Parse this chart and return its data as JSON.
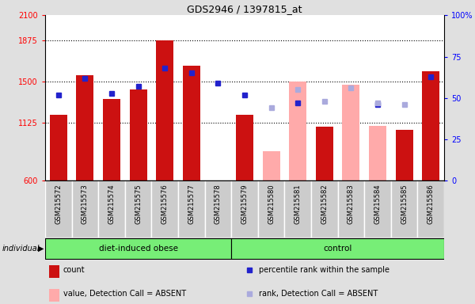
{
  "title": "GDS2946 / 1397815_at",
  "samples": [
    "GSM215572",
    "GSM215573",
    "GSM215574",
    "GSM215575",
    "GSM215576",
    "GSM215577",
    "GSM215578",
    "GSM215579",
    "GSM215580",
    "GSM215581",
    "GSM215582",
    "GSM215583",
    "GSM215584",
    "GSM215585",
    "GSM215586"
  ],
  "obese_group": [
    "GSM215572",
    "GSM215573",
    "GSM215574",
    "GSM215575",
    "GSM215576",
    "GSM215577",
    "GSM215578"
  ],
  "control_group": [
    "GSM215579",
    "GSM215580",
    "GSM215581",
    "GSM215582",
    "GSM215583",
    "GSM215584",
    "GSM215585",
    "GSM215586"
  ],
  "count_present": {
    "GSM215572": 1195,
    "GSM215573": 1560,
    "GSM215574": 1340,
    "GSM215575": 1430,
    "GSM215576": 1870,
    "GSM215577": 1640,
    "GSM215578": null,
    "GSM215579": 1195,
    "GSM215580": null,
    "GSM215581": null,
    "GSM215582": 1090,
    "GSM215583": null,
    "GSM215584": null,
    "GSM215585": 1065,
    "GSM215586": 1590
  },
  "count_absent": {
    "GSM215572": null,
    "GSM215573": null,
    "GSM215574": null,
    "GSM215575": null,
    "GSM215576": null,
    "GSM215577": null,
    "GSM215578": null,
    "GSM215579": null,
    "GSM215580": 870,
    "GSM215581": 1500,
    "GSM215582": null,
    "GSM215583": 1470,
    "GSM215584": 1100,
    "GSM215585": null,
    "GSM215586": null
  },
  "rank_present": {
    "GSM215572": 52,
    "GSM215573": 62,
    "GSM215574": 53,
    "GSM215575": 57,
    "GSM215576": 68,
    "GSM215577": 65,
    "GSM215578": 59,
    "GSM215579": 52,
    "GSM215580": null,
    "GSM215581": 47,
    "GSM215582": null,
    "GSM215583": null,
    "GSM215584": 46,
    "GSM215585": null,
    "GSM215586": 63
  },
  "rank_absent": {
    "GSM215572": null,
    "GSM215573": null,
    "GSM215574": null,
    "GSM215575": null,
    "GSM215576": null,
    "GSM215577": null,
    "GSM215578": null,
    "GSM215579": null,
    "GSM215580": 44,
    "GSM215581": 55,
    "GSM215582": 48,
    "GSM215583": 56,
    "GSM215584": 47,
    "GSM215585": 46,
    "GSM215586": null
  },
  "ymin": 600,
  "ymax": 2100,
  "yticks_left": [
    600,
    1125,
    1500,
    1875,
    2100
  ],
  "yticks_right": [
    0,
    25,
    50,
    75,
    100
  ],
  "hlines": [
    1125,
    1500,
    1875
  ],
  "bar_color_present": "#cc1111",
  "bar_color_absent": "#ffaaaa",
  "rank_color_present": "#2222cc",
  "rank_color_absent": "#aaaadd",
  "bar_width": 0.65,
  "bg_color": "#e0e0e0",
  "plot_bg": "#ffffff",
  "cell_bg": "#cccccc",
  "group_green": "#77ee77",
  "title_fontsize": 9,
  "tick_fontsize": 7,
  "label_fontsize": 6,
  "legend_fontsize": 7
}
